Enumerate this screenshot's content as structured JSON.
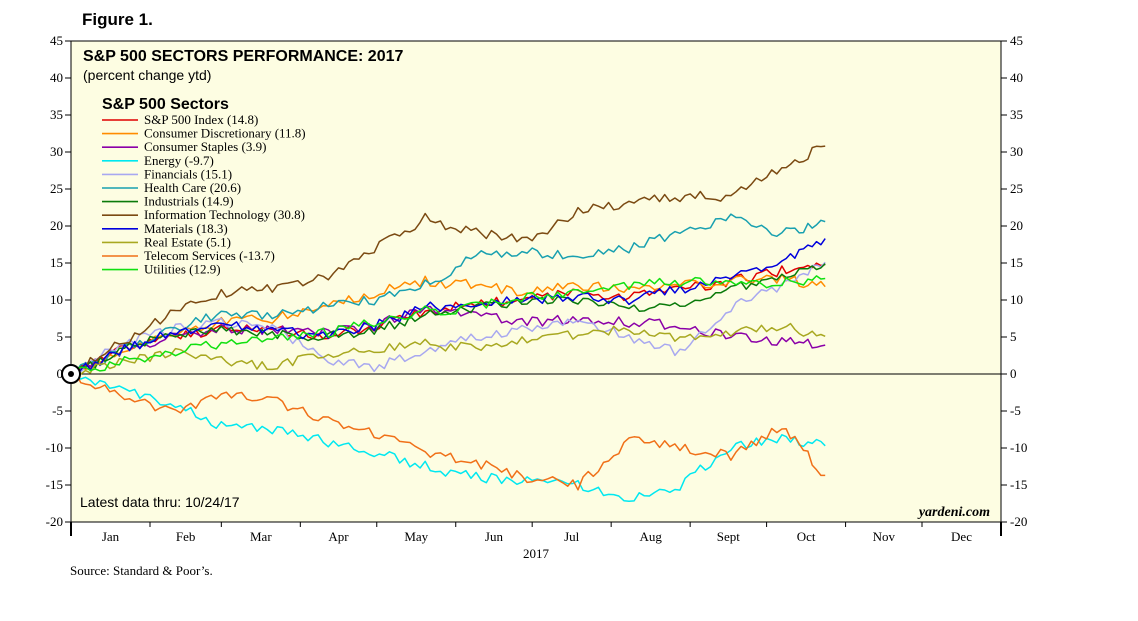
{
  "figure_label": "Figure 1.",
  "source": "Source: Standard & Poor’s.",
  "colors": {
    "plot_background": "#fdfde2",
    "axis": "#000000"
  },
  "chart_data": {
    "type": "line",
    "title": "S&P 500 SECTORS PERFORMANCE: 2017",
    "subtitle": "(percent change ytd)",
    "legend_title": "S&P 500 Sectors",
    "legend_position": "top-left",
    "note": "Latest data thru: 10/24/17",
    "watermark": "yardeni.com",
    "xlabel": "2017",
    "ylabel": "",
    "ylim": [
      -20,
      45
    ],
    "yticks": [
      -20,
      -15,
      -10,
      -5,
      0,
      5,
      10,
      15,
      20,
      25,
      30,
      35,
      40,
      45
    ],
    "xlim": [
      1,
      365
    ],
    "month_labels": [
      "Jan",
      "Feb",
      "Mar",
      "Apr",
      "May",
      "Jun",
      "Jul",
      "Aug",
      "Sept",
      "Oct",
      "Nov",
      "Dec"
    ],
    "month_starts": [
      1,
      32,
      60,
      91,
      121,
      152,
      182,
      213,
      244,
      274,
      305,
      335,
      366
    ],
    "grid": false,
    "series": [
      {
        "name": "S&P 500 Index (14.8)",
        "color": "#e00000",
        "x": [
          1,
          20,
          40,
          60,
          80,
          100,
          120,
          140,
          160,
          180,
          200,
          220,
          240,
          260,
          280,
          297
        ],
        "values": [
          0,
          3.5,
          5,
          6,
          6,
          5,
          6.5,
          8.5,
          9.5,
          10,
          11,
          10.5,
          11.5,
          12.5,
          14,
          14.8
        ]
      },
      {
        "name": "Consumer Discretionary (11.8)",
        "color": "#ff8c00",
        "x": [
          1,
          20,
          40,
          60,
          80,
          100,
          120,
          140,
          160,
          180,
          200,
          220,
          240,
          260,
          280,
          297
        ],
        "values": [
          0,
          3,
          5.5,
          7,
          7.5,
          9,
          11,
          12.5,
          12,
          11,
          12,
          11.5,
          12,
          12.5,
          13,
          11.8
        ]
      },
      {
        "name": "Consumer Staples (3.9)",
        "color": "#8b00a8",
        "x": [
          1,
          20,
          40,
          60,
          80,
          100,
          120,
          140,
          160,
          180,
          200,
          220,
          240,
          260,
          280,
          297
        ],
        "values": [
          0,
          3,
          5,
          6,
          6,
          5.5,
          6.5,
          9,
          8,
          7,
          7.5,
          7,
          6.5,
          5,
          4.5,
          3.9
        ]
      },
      {
        "name": "Energy (-9.7)",
        "color": "#00e8f0",
        "x": [
          1,
          20,
          40,
          60,
          80,
          100,
          120,
          140,
          160,
          180,
          200,
          220,
          240,
          260,
          280,
          297
        ],
        "values": [
          0,
          -2,
          -4,
          -7,
          -7.5,
          -9,
          -10.5,
          -12.5,
          -14,
          -14.5,
          -15,
          -17,
          -15,
          -10,
          -8.5,
          -9.7
        ]
      },
      {
        "name": "Financials (15.1)",
        "color": "#a8a8f0",
        "x": [
          1,
          20,
          40,
          60,
          80,
          100,
          120,
          140,
          160,
          180,
          200,
          220,
          240,
          260,
          280,
          297
        ],
        "values": [
          0,
          4,
          6,
          7,
          6.5,
          2,
          1,
          3,
          5,
          6,
          7,
          5,
          3,
          9,
          12,
          15.1
        ]
      },
      {
        "name": "Health Care (20.6)",
        "color": "#18a0b0",
        "x": [
          1,
          20,
          40,
          60,
          80,
          100,
          120,
          140,
          160,
          180,
          200,
          220,
          240,
          260,
          280,
          297
        ],
        "values": [
          0,
          3,
          6,
          8,
          8,
          9,
          10,
          12,
          16,
          16.5,
          16,
          17,
          19,
          21,
          19,
          20.6
        ]
      },
      {
        "name": "Industrials (14.9)",
        "color": "#0a7a0a",
        "x": [
          1,
          20,
          40,
          60,
          80,
          100,
          120,
          140,
          160,
          180,
          200,
          220,
          240,
          260,
          280,
          297
        ],
        "values": [
          0,
          3,
          5.5,
          6,
          5.5,
          5,
          6,
          8,
          9,
          10,
          10,
          9,
          9.5,
          11.5,
          13.5,
          14.9
        ]
      },
      {
        "name": "Information Technology (30.8)",
        "color": "#7b4a12",
        "x": [
          1,
          20,
          40,
          60,
          80,
          100,
          120,
          140,
          160,
          180,
          200,
          220,
          240,
          260,
          280,
          297
        ],
        "values": [
          0,
          4,
          8,
          11,
          11.5,
          13,
          17,
          21,
          19,
          18,
          22,
          23,
          24,
          24,
          28,
          30.8
        ]
      },
      {
        "name": "Materials (18.3)",
        "color": "#0000dd",
        "x": [
          1,
          20,
          40,
          60,
          80,
          100,
          120,
          140,
          160,
          180,
          200,
          220,
          240,
          260,
          280,
          297
        ],
        "values": [
          0,
          3,
          5.5,
          6.5,
          6,
          5,
          6.5,
          9,
          9.5,
          10,
          10.5,
          10,
          11.5,
          13,
          15.5,
          18.3
        ]
      },
      {
        "name": "Real Estate (5.1)",
        "color": "#a8a820",
        "x": [
          1,
          20,
          40,
          60,
          80,
          100,
          120,
          140,
          160,
          180,
          200,
          220,
          240,
          260,
          280,
          297
        ],
        "values": [
          0,
          1.5,
          3,
          2,
          1,
          2.5,
          3.5,
          4,
          3.5,
          4.5,
          5.5,
          6,
          5,
          5.5,
          6.5,
          5.1
        ]
      },
      {
        "name": "Telecom Services (-13.7)",
        "color": "#f07018",
        "x": [
          1,
          20,
          40,
          60,
          80,
          100,
          120,
          140,
          160,
          180,
          200,
          220,
          240,
          260,
          280,
          297
        ],
        "values": [
          0,
          -3,
          -5,
          -3,
          -3.5,
          -6,
          -8,
          -10.5,
          -12,
          -14,
          -15,
          -9,
          -10,
          -11,
          -7,
          -13.7
        ]
      },
      {
        "name": "Utilities (12.9)",
        "color": "#10e010",
        "x": [
          1,
          20,
          40,
          60,
          80,
          100,
          120,
          140,
          160,
          180,
          200,
          220,
          240,
          260,
          280,
          297
        ],
        "values": [
          0,
          1.5,
          3,
          4,
          5,
          5.5,
          7,
          8.5,
          9,
          10.5,
          11,
          12,
          12.5,
          12,
          12.5,
          12.9
        ]
      }
    ]
  }
}
